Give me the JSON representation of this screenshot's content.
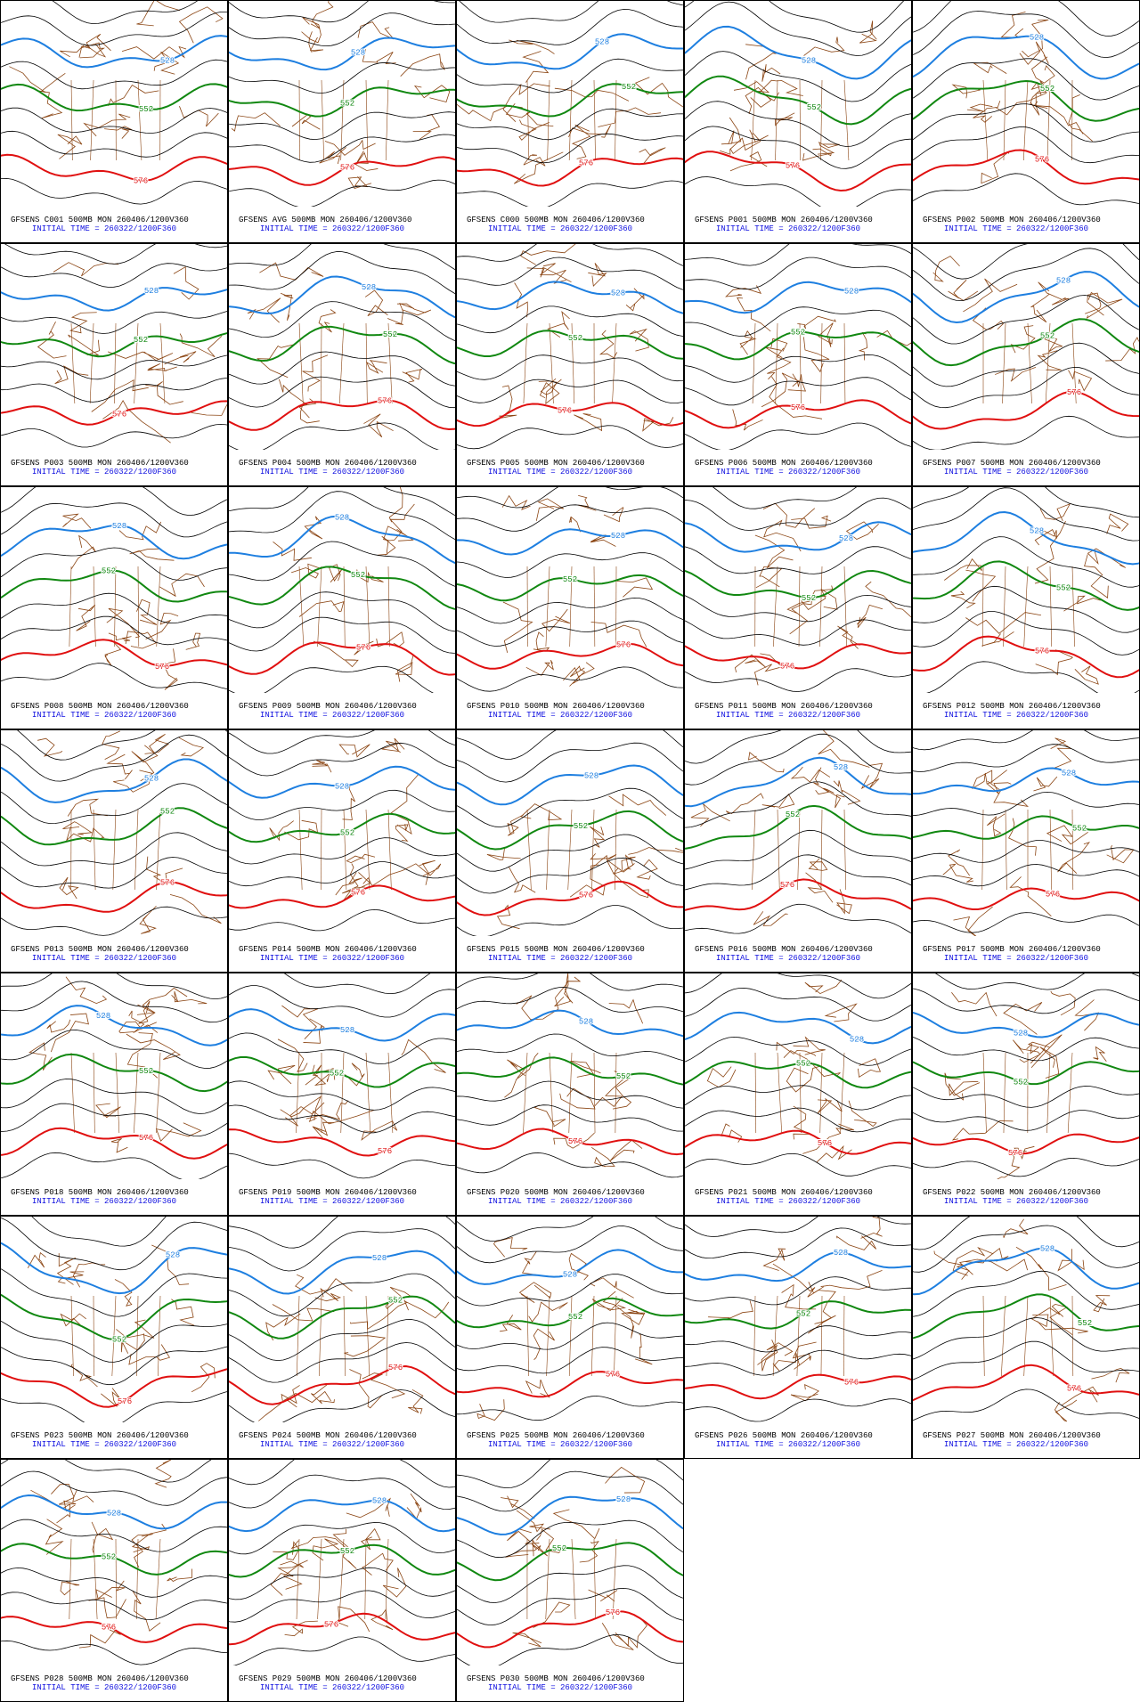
{
  "contours": [
    {
      "label": "528",
      "color": "#1e7fe0"
    },
    {
      "label": "552",
      "color": "#118811"
    },
    {
      "label": "576",
      "color": "#e01010"
    }
  ],
  "panels": [
    {
      "title": "GFSENS C001 500MB MON 260406/1200V360",
      "init": "INITIAL TIME = 260322/1200F360"
    },
    {
      "title": "GFSENS AVG 500MB MON 260406/1200V360",
      "init": "INITIAL TIME = 260322/1200F360"
    },
    {
      "title": "GFSENS C000 500MB MON 260406/1200V360",
      "init": "INITIAL TIME = 260322/1200F360"
    },
    {
      "title": "GFSENS P001 500MB MON 260406/1200V360",
      "init": "INITIAL TIME = 260322/1200F360"
    },
    {
      "title": "GFSENS P002 500MB MON 260406/1200V360",
      "init": "INITIAL TIME = 260322/1200F360"
    },
    {
      "title": "GFSENS P003 500MB MON 260406/1200V360",
      "init": "INITIAL TIME = 260322/1200F360"
    },
    {
      "title": "GFSENS P004 500MB MON 260406/1200V360",
      "init": "INITIAL TIME = 260322/1200F360"
    },
    {
      "title": "GFSENS P005 500MB MON 260406/1200V360",
      "init": "INITIAL TIME = 260322/1200F360"
    },
    {
      "title": "GFSENS P006 500MB MON 260406/1200V360",
      "init": "INITIAL TIME = 260322/1200F360"
    },
    {
      "title": "GFSENS P007 500MB MON 260406/1200V360",
      "init": "INITIAL TIME = 260322/1200F360"
    },
    {
      "title": "GFSENS P008 500MB MON 260406/1200V360",
      "init": "INITIAL TIME = 260322/1200F360"
    },
    {
      "title": "GFSENS P009 500MB MON 260406/1200V360",
      "init": "INITIAL TIME = 260322/1200F360"
    },
    {
      "title": "GFSENS P010 500MB MON 260406/1200V360",
      "init": "INITIAL TIME = 260322/1200F360"
    },
    {
      "title": "GFSENS P011 500MB MON 260406/1200V360",
      "init": "INITIAL TIME = 260322/1200F360"
    },
    {
      "title": "GFSENS P012 500MB MON 260406/1200V360",
      "init": "INITIAL TIME = 260322/1200F360"
    },
    {
      "title": "GFSENS P013 500MB MON 260406/1200V360",
      "init": "INITIAL TIME = 260322/1200F360"
    },
    {
      "title": "GFSENS P014 500MB MON 260406/1200V360",
      "init": "INITIAL TIME = 260322/1200F360"
    },
    {
      "title": "GFSENS P015 500MB MON 260406/1200V360",
      "init": "INITIAL TIME = 260322/1200F360"
    },
    {
      "title": "GFSENS P016 500MB MON 260406/1200V360",
      "init": "INITIAL TIME = 260322/1200F360"
    },
    {
      "title": "GFSENS P017 500MB MON 260406/1200V360",
      "init": "INITIAL TIME = 260322/1200F360"
    },
    {
      "title": "GFSENS P018 500MB MON 260406/1200V360",
      "init": "INITIAL TIME = 260322/1200F360"
    },
    {
      "title": "GFSENS P019 500MB MON 260406/1200V360",
      "init": "INITIAL TIME = 260322/1200F360"
    },
    {
      "title": "GFSENS P020 500MB MON 260406/1200V360",
      "init": "INITIAL TIME = 260322/1200F360"
    },
    {
      "title": "GFSENS P021 500MB MON 260406/1200V360",
      "init": "INITIAL TIME = 260322/1200F360"
    },
    {
      "title": "GFSENS P022 500MB MON 260406/1200V360",
      "init": "INITIAL TIME = 260322/1200F360"
    },
    {
      "title": "GFSENS P023 500MB MON 260406/1200V360",
      "init": "INITIAL TIME = 260322/1200F360"
    },
    {
      "title": "GFSENS P024 500MB MON 260406/1200V360",
      "init": "INITIAL TIME = 260322/1200F360"
    },
    {
      "title": "GFSENS P025 500MB MON 260406/1200V360",
      "init": "INITIAL TIME = 260322/1200F360"
    },
    {
      "title": "GFSENS P026 500MB MON 260406/1200V360",
      "init": "INITIAL TIME = 260322/1200F360"
    },
    {
      "title": "GFSENS P027 500MB MON 260406/1200V360",
      "init": "INITIAL TIME = 260322/1200F360"
    },
    {
      "title": "GFSENS P028 500MB MON 260406/1200V360",
      "init": "INITIAL TIME = 260322/1200F360"
    },
    {
      "title": "GFSENS P029 500MB MON 260406/1200V360",
      "init": "INITIAL TIME = 260322/1200F360"
    },
    {
      "title": "GFSENS P030 500MB MON 260406/1200V360",
      "init": "INITIAL TIME = 260322/1200F360"
    }
  ]
}
